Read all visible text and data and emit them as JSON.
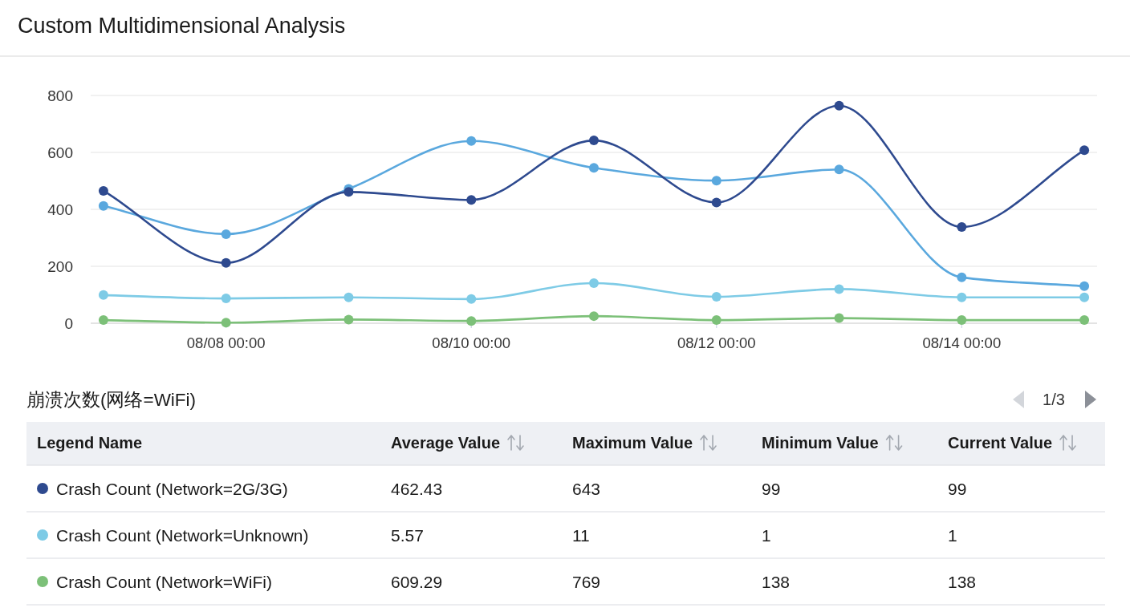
{
  "chart_data": {
    "type": "line",
    "title": "Custom Multidimensional Analysis",
    "x": [
      "--08-07",
      "--08-08",
      "--08-09",
      "--08-10",
      "--08-11",
      "--08-12",
      "--08-13",
      "--08-14",
      "--08-15"
    ],
    "xlim": [
      "--08-06T21:30",
      "--08-15T02:30"
    ],
    "xticks": [
      {
        "value": "--08-08",
        "label": "08/08 00:00"
      },
      {
        "value": "--08-10",
        "label": "08/10 00:00"
      },
      {
        "value": "--08-12",
        "label": "08/12 00:00"
      },
      {
        "value": "--08-14",
        "label": "08/14 00:00"
      }
    ],
    "ylim": [
      0,
      800
    ],
    "yticks": [
      0,
      200,
      400,
      600,
      800
    ],
    "grid": "y",
    "marker": "circle",
    "legend": "bottom",
    "legend_title": "Legend Name",
    "series": [
      {
        "color": "#5aa8de",
        "values": [
          412,
          313,
          472,
          640,
          546,
          501,
          540,
          161,
          130
        ]
      },
      {
        "name": "Crash Count (Network=2G/3G)",
        "color": "#2e4a8f",
        "values": [
          465,
          212,
          461,
          433,
          642,
          424,
          764,
          338,
          608
        ]
      },
      {
        "name": "Crash Count (Network=Unknown)",
        "color": "#7ecbe6",
        "values": [
          99,
          87,
          91,
          85,
          141,
          93,
          120,
          91,
          91
        ]
      },
      {
        "name": "Crash Count (Network=WiFi)",
        "color": "#7cc078",
        "values": [
          11,
          2,
          13,
          8,
          25,
          11,
          18,
          11,
          11
        ]
      }
    ],
    "annotations": [
      "崩溃次数(网络=WiFi)",
      "1/3",
      "Average Value",
      "Maximum Value",
      "Minimum Value",
      "Current Value",
      "462.43",
      "643",
      "99",
      "99",
      "5.57",
      "11",
      "1",
      "1",
      "609.29",
      "769",
      "138",
      "138"
    ]
  }
}
